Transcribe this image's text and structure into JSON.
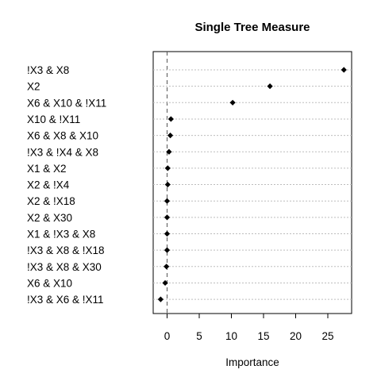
{
  "chart_data": {
    "type": "dotplot",
    "title": "Single Tree Measure",
    "xlabel": "Importance",
    "ylabel": "",
    "xlim": [
      -2,
      28.5
    ],
    "xticks": [
      0,
      5,
      10,
      15,
      20,
      25
    ],
    "reference_line": 0,
    "grid": "horizontal-dotted",
    "categories": [
      "!X3 & X8",
      "X2",
      "X6 & X10 & !X11",
      "X10 & !X11",
      "X6 & X8 & X10",
      "!X3 & !X4 & X8",
      "X1 & X2",
      "X2 & !X4",
      "X2 & !X18",
      "X2 & X30",
      "X1 & !X3 & X8",
      "!X3 & X8 & !X18",
      "!X3 & X8 & X30",
      "X6 & X10",
      "!X3 & X6 & !X11"
    ],
    "values": [
      27.5,
      16.0,
      10.2,
      0.6,
      0.5,
      0.3,
      0.1,
      0.1,
      0.0,
      0.0,
      0.0,
      0.0,
      -0.1,
      -0.3,
      -1.0
    ]
  }
}
